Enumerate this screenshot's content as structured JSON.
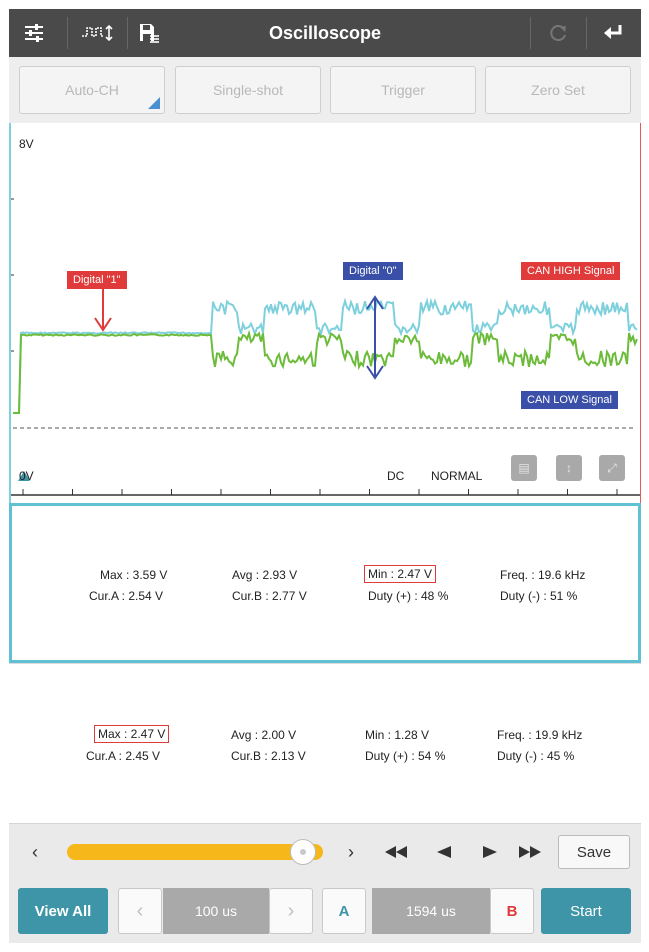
{
  "app": {
    "title": "Oscilloscope",
    "icons": [
      "sliders-icon",
      "pulse-arrows-icon",
      "floppy-list-icon",
      "refresh-icon",
      "back-icon"
    ]
  },
  "modes": {
    "auto_ch": "Auto-CH",
    "single_shot": "Single-shot",
    "trigger": "Trigger",
    "zero_set": "Zero Set"
  },
  "scope": {
    "top_label": "8V",
    "bottom_label": "0V",
    "coupling": "DC",
    "trigger_mode": "NORMAL",
    "annotations": {
      "digital_1": "Digital \"1\"",
      "digital_0": "Digital \"0\"",
      "can_high": "CAN HIGH Signal",
      "can_low": "CAN LOW Signal"
    },
    "colors": {
      "can_high": "#7fd0dd",
      "can_low": "#6dbb3a",
      "tag_red": "#e03a3a",
      "tag_blue": "#3a4fa8"
    }
  },
  "channel_a": {
    "max": "Max : 3.59 V",
    "avg": "Avg : 2.93 V",
    "min": "Min : 2.47 V",
    "freq": "Freq. : 19.6 kHz",
    "cur_a": "Cur.A : 2.54 V",
    "cur_b": "Cur.B : 2.77 V",
    "duty_pos": "Duty (+) : 48 %",
    "duty_neg": "Duty (-) : 51 %"
  },
  "channel_b": {
    "max": "Max : 2.47 V",
    "avg": "Avg : 2.00 V",
    "min": "Min : 1.28 V",
    "freq": "Freq. : 19.9 kHz",
    "cur_a": "Cur.A : 2.45 V",
    "cur_b": "Cur.B : 2.13 V",
    "duty_pos": "Duty (+) : 54 %",
    "duty_neg": "Duty (-) : 45 %"
  },
  "playback": {
    "position_fraction": 0.97,
    "save_label": "Save"
  },
  "bottom": {
    "view_all": "View All",
    "time_div": "100 us",
    "cursor_a": "A",
    "cursor_delta": "1594 us",
    "cursor_b": "B",
    "start": "Start"
  }
}
